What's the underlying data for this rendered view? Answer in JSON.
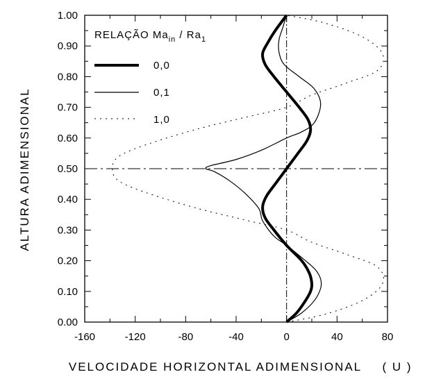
{
  "chart_data": {
    "type": "line",
    "xlabel": "VELOCIDADE HORIZONTAL ADIMENSIONAL",
    "xlabel_unit": "( U )",
    "ylabel": "ALTURA ADIMENSIONAL",
    "xlim": [
      -160,
      80
    ],
    "ylim": [
      0,
      1
    ],
    "xticks": [
      "-160",
      "-120",
      "-80",
      "-40",
      "0",
      "40",
      "80"
    ],
    "yticks": [
      "0.00",
      "0.10",
      "0.20",
      "0.30",
      "0.40",
      "0.50",
      "0.60",
      "0.70",
      "0.80",
      "0.90",
      "1.00"
    ],
    "grid": false,
    "legend_position": "top-left",
    "legend": {
      "title_main": "RELAÇÃO  Ma",
      "title_sub1": "in",
      "title_mid": " / Ra",
      "title_sub2": "1"
    },
    "reference_lines": [
      {
        "type": "vertical",
        "x": 0,
        "style": "dash-dot"
      },
      {
        "type": "horizontal",
        "y": 0.5,
        "style": "dash-dot"
      }
    ],
    "series": [
      {
        "name": "0,0",
        "style": "solid-thick",
        "points": [
          [
            0,
            0
          ],
          [
            8,
            0.03
          ],
          [
            15,
            0.07
          ],
          [
            19,
            0.1
          ],
          [
            20,
            0.125
          ],
          [
            18,
            0.16
          ],
          [
            12,
            0.2
          ],
          [
            0,
            0.25
          ],
          [
            -10,
            0.3
          ],
          [
            -17,
            0.34
          ],
          [
            -19,
            0.375
          ],
          [
            -16,
            0.41
          ],
          [
            -9,
            0.45
          ],
          [
            0,
            0.5
          ],
          [
            9,
            0.55
          ],
          [
            16,
            0.59
          ],
          [
            19,
            0.625
          ],
          [
            17,
            0.66
          ],
          [
            10,
            0.7
          ],
          [
            0,
            0.75
          ],
          [
            -10,
            0.8
          ],
          [
            -17,
            0.84
          ],
          [
            -19,
            0.875
          ],
          [
            -15,
            0.91
          ],
          [
            -9,
            0.95
          ],
          [
            0,
            1
          ]
        ]
      },
      {
        "name": "0,1",
        "style": "solid-thin",
        "points": [
          [
            0,
            0
          ],
          [
            12,
            0.03
          ],
          [
            22,
            0.07
          ],
          [
            27,
            0.11
          ],
          [
            27,
            0.14
          ],
          [
            23,
            0.17
          ],
          [
            15,
            0.2
          ],
          [
            0,
            0.25
          ],
          [
            -10,
            0.28
          ],
          [
            -19,
            0.33
          ],
          [
            -22,
            0.37
          ],
          [
            -33,
            0.42
          ],
          [
            -45,
            0.46
          ],
          [
            -57,
            0.49
          ],
          [
            -64,
            0.5
          ],
          [
            -60,
            0.51
          ],
          [
            -40,
            0.53
          ],
          [
            -20,
            0.56
          ],
          [
            0,
            0.6
          ],
          [
            12,
            0.62
          ],
          [
            22,
            0.65
          ],
          [
            27,
            0.71
          ],
          [
            22,
            0.76
          ],
          [
            10,
            0.8
          ],
          [
            -2,
            0.84
          ],
          [
            -6,
            0.88
          ],
          [
            -6,
            0.92
          ],
          [
            -3,
            0.96
          ],
          [
            0,
            1
          ]
        ]
      },
      {
        "name": "1,0",
        "style": "dotted",
        "points": [
          [
            0,
            0
          ],
          [
            30,
            0.025
          ],
          [
            60,
            0.07
          ],
          [
            76,
            0.125
          ],
          [
            72,
            0.18
          ],
          [
            48,
            0.22
          ],
          [
            20,
            0.26
          ],
          [
            0,
            0.3
          ],
          [
            -30,
            0.33
          ],
          [
            -70,
            0.37
          ],
          [
            -110,
            0.42
          ],
          [
            -133,
            0.46
          ],
          [
            -138,
            0.5
          ],
          [
            -133,
            0.54
          ],
          [
            -110,
            0.58
          ],
          [
            -70,
            0.63
          ],
          [
            -30,
            0.67
          ],
          [
            0,
            0.7
          ],
          [
            20,
            0.74
          ],
          [
            48,
            0.78
          ],
          [
            72,
            0.82
          ],
          [
            76,
            0.875
          ],
          [
            60,
            0.93
          ],
          [
            30,
            0.975
          ],
          [
            0,
            1
          ]
        ]
      }
    ]
  }
}
